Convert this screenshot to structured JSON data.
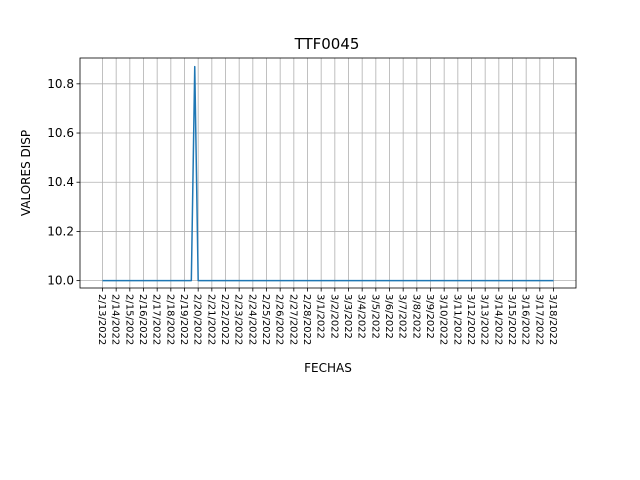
{
  "chart_data": {
    "type": "line",
    "title": "TTF0045",
    "xlabel": "FECHAS",
    "ylabel": "VALORES DISP",
    "grid": true,
    "ylim": [
      9.97,
      10.905
    ],
    "yticks": [
      "10.0",
      "10.2",
      "10.4",
      "10.6",
      "10.8"
    ],
    "x_ticks": [
      "2/13/2022",
      "2/14/2022",
      "2/15/2022",
      "2/16/2022",
      "2/17/2022",
      "2/18/2022",
      "2/19/2022",
      "2/20/2022",
      "2/21/2022",
      "2/22/2022",
      "2/23/2022",
      "2/24/2022",
      "2/25/2022",
      "2/26/2022",
      "2/27/2022",
      "2/28/2022",
      "3/1/2022",
      "3/2/2022",
      "3/3/2022",
      "3/4/2022",
      "3/5/2022",
      "3/6/2022",
      "3/7/2022",
      "3/8/2022",
      "3/9/2022",
      "3/10/2022",
      "3/11/2022",
      "3/12/2022",
      "3/13/2022",
      "3/14/2022",
      "3/15/2022",
      "3/16/2022",
      "3/17/2022",
      "3/18/2022"
    ],
    "colors": {
      "line": "#1f77b4"
    },
    "series": [
      {
        "x": [
          "2/13/2022",
          "2/19/2022 12:00",
          "2/19/2022 18:00",
          "2/20/2022",
          "3/18/2022"
        ],
        "values": [
          10.0,
          10.0,
          10.87,
          10.0,
          10.0
        ]
      }
    ]
  }
}
